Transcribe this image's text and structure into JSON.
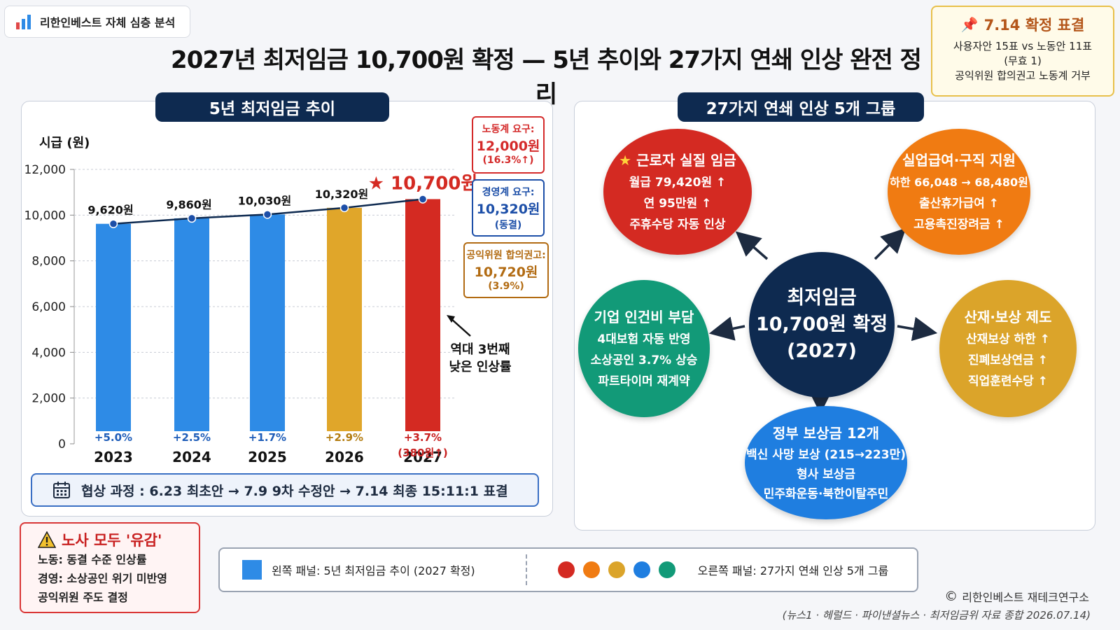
{
  "brand": {
    "label": "리한인베스트 자체 심층 분석"
  },
  "title": "2027년 최저임금 10,700원 확정 — 5년 추이와 27가지 연쇄 인상 완전 정리",
  "vote_box": {
    "title": "7.14 확정 표결",
    "lines": [
      "사용자안 15표 vs 노동안 11표",
      "(무효 1)",
      "공익위원 합의권고 노동계 거부"
    ]
  },
  "left_panel": {
    "header": "5년 최저임금 추이",
    "callouts": {
      "labor": {
        "label": "노동계 요구:",
        "value": "12,000원",
        "note": "(16.3%↑)",
        "color": "#d42a2a"
      },
      "business": {
        "label": "경영계 요구:",
        "value": "10,320원",
        "note": "(동결)",
        "color": "#1d4fa8"
      },
      "public": {
        "label": "공익위원 합의권고:",
        "value": "10,720원",
        "note": "(3.9%)",
        "color": "#b26b12"
      }
    },
    "annotation": [
      "역대 3번째",
      "낮은 인상률"
    ],
    "negotiation": "협상 과정 : 6.23 최초안 → 7.9  9차 수정안  → 7.14 최종 15:11:1 표결"
  },
  "chart_data": {
    "type": "bar",
    "ylabel": "시급 (원)",
    "ylim": [
      0,
      12000
    ],
    "yticks": [
      "0",
      "2,000",
      "4,000",
      "6,000",
      "8,000",
      "10,000",
      "12,000"
    ],
    "ytick_values": [
      0,
      2000,
      4000,
      6000,
      8000,
      10000,
      12000
    ],
    "categories": [
      "2023",
      "2024",
      "2025",
      "2026",
      "2027"
    ],
    "values": [
      9620,
      9860,
      10030,
      10320,
      10700
    ],
    "value_labels": [
      "9,620원",
      "9,860원",
      "10,030원",
      "10,320원",
      "★ 10,700원"
    ],
    "growth_labels": [
      "+5.0%",
      "+2.5%",
      "+1.7%",
      "+2.9%",
      "+3.7%"
    ],
    "growth_extra": "(380원↑)",
    "bar_colors": [
      "#2e8be6",
      "#2e8be6",
      "#2e8be6",
      "#e0a62a",
      "#d42a22"
    ],
    "growth_colors": [
      "#1d5cb8",
      "#1d5cb8",
      "#1d5cb8",
      "#b37c10",
      "#c81f1f"
    ],
    "trend_line": true,
    "grid": true
  },
  "right_panel": {
    "header": "27가지 연쇄 인상 5개 그룹",
    "center": {
      "lines": [
        "최저임금",
        "10,700원 확정",
        "(2027)"
      ]
    },
    "groups": [
      {
        "title": "근로자 실질 임금",
        "lines": [
          "월급 79,420원 ↑",
          "연 95만원 ↑",
          "주휴수당 자동 인상"
        ],
        "color": "#d42a22",
        "star": true
      },
      {
        "title": "실업급여·구직 지원",
        "lines": [
          "하한 66,048 → 68,480원",
          "출산휴가급여 ↑",
          "고용촉진장려금 ↑"
        ],
        "color": "#f07b12"
      },
      {
        "title": "기업 인건비 부담",
        "lines": [
          "4대보험 자동 반영",
          "소상공인 3.7% 상승",
          "파트타이머 재계약"
        ],
        "color": "#129a78"
      },
      {
        "title": "산재·보상 제도",
        "lines": [
          "산재보상 하한 ↑",
          "진폐보상연금 ↑",
          "직업훈련수당 ↑"
        ],
        "color": "#dba42a"
      },
      {
        "title": "정부 보상금 12개",
        "lines": [
          "백신 사망 보상 (215→223만)",
          "형사 보상금",
          "민주화운동·북한이탈주민"
        ],
        "color": "#1f7ee0"
      }
    ]
  },
  "regret": {
    "title": "노사 모두 '유감'",
    "lines": [
      "노동: 동결 수준 인상률",
      "경영: 소상공인 위기 미반영",
      "공익위원 주도 결정"
    ]
  },
  "legend": {
    "left": "왼쪽 패널: 5년 최저임금 추이 (2027 확정)",
    "right": "오른쪽 패널: 27가지 연쇄 인상 5개 그룹",
    "dots": [
      "#d42a22",
      "#f07b12",
      "#dba42a",
      "#1f7ee0",
      "#129a78"
    ]
  },
  "footer": {
    "copyright": "리한인베스트 재테크연구소",
    "source": "(뉴스1 · 헤럴드 · 파이낸셜뉴스 · 최저임금위 자료 종합 2026.07.14)"
  }
}
